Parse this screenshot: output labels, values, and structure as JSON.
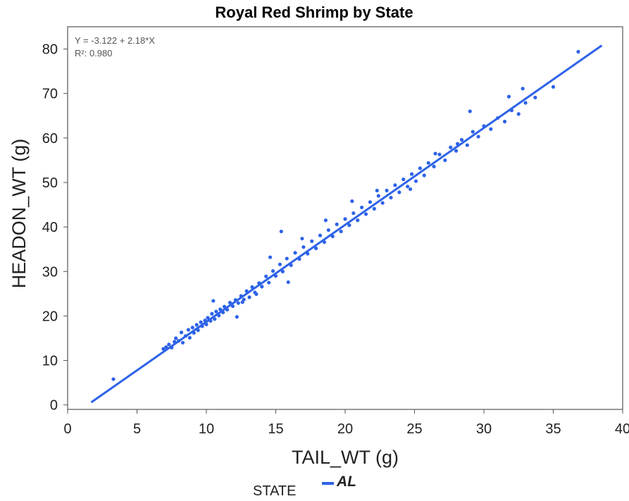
{
  "chart_data": {
    "type": "scatter",
    "title": "Royal Red Shrimp by State",
    "xlabel": "TAIL_WT (g)",
    "ylabel": "HEADON_WT (g)",
    "xlim": [
      0,
      40
    ],
    "ylim": [
      -1,
      85
    ],
    "xticks": [
      "0",
      "5",
      "10",
      "15",
      "20",
      "25",
      "30",
      "35",
      "40"
    ],
    "yticks": [
      "0",
      "10",
      "20",
      "30",
      "40",
      "50",
      "60",
      "70",
      "80"
    ],
    "grid": false,
    "fit": {
      "equation_label": "Y = -3.122 + 2.18*X",
      "r2_label": "R²: 0.980",
      "intercept": -3.122,
      "slope": 2.18,
      "x_range": [
        1.7,
        38.5
      ]
    },
    "legend": {
      "position": "bottom-center",
      "title": "STATE",
      "label": "AL"
    },
    "series": [
      {
        "name": "AL",
        "color": "#2e63e8",
        "points": [
          [
            3.3,
            5.8
          ],
          [
            6.9,
            12.6
          ],
          [
            7.1,
            13.0
          ],
          [
            7.3,
            13.6
          ],
          [
            7.5,
            12.9
          ],
          [
            7.7,
            14.2
          ],
          [
            7.8,
            15.0
          ],
          [
            8.0,
            14.4
          ],
          [
            8.2,
            16.3
          ],
          [
            8.3,
            14.0
          ],
          [
            8.5,
            15.5
          ],
          [
            8.7,
            16.9
          ],
          [
            8.8,
            15.1
          ],
          [
            9.0,
            17.4
          ],
          [
            9.1,
            16.2
          ],
          [
            9.3,
            18.0
          ],
          [
            9.4,
            16.8
          ],
          [
            9.6,
            18.6
          ],
          [
            9.7,
            17.7
          ],
          [
            9.9,
            19.0
          ],
          [
            10.0,
            18.1
          ],
          [
            10.1,
            19.6
          ],
          [
            10.3,
            18.9
          ],
          [
            10.4,
            20.5
          ],
          [
            10.6,
            19.3
          ],
          [
            10.7,
            21.0
          ],
          [
            10.9,
            20.1
          ],
          [
            11.0,
            21.5
          ],
          [
            11.2,
            20.8
          ],
          [
            11.3,
            22.1
          ],
          [
            11.5,
            21.4
          ],
          [
            11.7,
            23.0
          ],
          [
            11.9,
            22.2
          ],
          [
            12.1,
            23.6
          ],
          [
            12.3,
            22.9
          ],
          [
            12.5,
            24.5
          ],
          [
            12.7,
            23.7
          ],
          [
            12.9,
            25.6
          ],
          [
            13.1,
            24.2
          ],
          [
            13.3,
            26.5
          ],
          [
            13.5,
            25.3
          ],
          [
            13.8,
            27.4
          ],
          [
            14.0,
            26.6
          ],
          [
            14.3,
            28.9
          ],
          [
            14.5,
            27.5
          ],
          [
            14.8,
            30.1
          ],
          [
            15.0,
            29.0
          ],
          [
            15.3,
            31.6
          ],
          [
            15.5,
            30.0
          ],
          [
            15.8,
            32.9
          ],
          [
            16.1,
            31.4
          ],
          [
            16.4,
            34.2
          ],
          [
            16.7,
            32.8
          ],
          [
            17.0,
            35.5
          ],
          [
            17.3,
            34.0
          ],
          [
            17.6,
            36.8
          ],
          [
            17.9,
            35.2
          ],
          [
            18.2,
            38.1
          ],
          [
            18.5,
            36.6
          ],
          [
            18.8,
            39.3
          ],
          [
            19.1,
            37.9
          ],
          [
            19.4,
            40.6
          ],
          [
            19.7,
            39.0
          ],
          [
            20.0,
            41.8
          ],
          [
            20.3,
            40.4
          ],
          [
            20.6,
            43.1
          ],
          [
            20.9,
            41.5
          ],
          [
            21.2,
            44.4
          ],
          [
            21.5,
            42.9
          ],
          [
            21.8,
            45.6
          ],
          [
            22.1,
            44.1
          ],
          [
            22.4,
            47.0
          ],
          [
            22.7,
            45.4
          ],
          [
            23.0,
            48.2
          ],
          [
            23.3,
            46.6
          ],
          [
            23.6,
            49.4
          ],
          [
            23.9,
            47.8
          ],
          [
            24.2,
            50.7
          ],
          [
            24.5,
            49.1
          ],
          [
            24.8,
            51.9
          ],
          [
            25.1,
            50.3
          ],
          [
            25.4,
            53.2
          ],
          [
            25.7,
            51.6
          ],
          [
            26.0,
            54.4
          ],
          [
            26.4,
            53.6
          ],
          [
            26.8,
            56.3
          ],
          [
            27.2,
            55.0
          ],
          [
            27.6,
            57.9
          ],
          [
            28.0,
            57.1
          ],
          [
            28.4,
            59.6
          ],
          [
            28.8,
            58.4
          ],
          [
            29.2,
            61.4
          ],
          [
            29.6,
            60.3
          ],
          [
            30.0,
            62.7
          ],
          [
            30.5,
            62.0
          ],
          [
            31.0,
            64.5
          ],
          [
            31.5,
            63.7
          ],
          [
            32.0,
            66.2
          ],
          [
            32.5,
            65.4
          ],
          [
            33.0,
            67.9
          ],
          [
            33.7,
            69.1
          ],
          [
            35.0,
            71.5
          ],
          [
            36.8,
            79.4
          ],
          [
            12.6,
            23.1
          ],
          [
            13.6,
            24.9
          ],
          [
            14.6,
            33.2
          ],
          [
            15.4,
            39.0
          ],
          [
            16.9,
            37.4
          ],
          [
            18.6,
            41.5
          ],
          [
            20.5,
            45.8
          ],
          [
            22.3,
            48.2
          ],
          [
            24.7,
            48.5
          ],
          [
            26.5,
            56.5
          ],
          [
            28.1,
            58.7
          ],
          [
            29.0,
            66.0
          ],
          [
            31.8,
            69.3
          ],
          [
            32.8,
            71.1
          ],
          [
            10.5,
            23.4
          ],
          [
            12.2,
            19.8
          ],
          [
            15.9,
            27.6
          ]
        ]
      }
    ]
  }
}
